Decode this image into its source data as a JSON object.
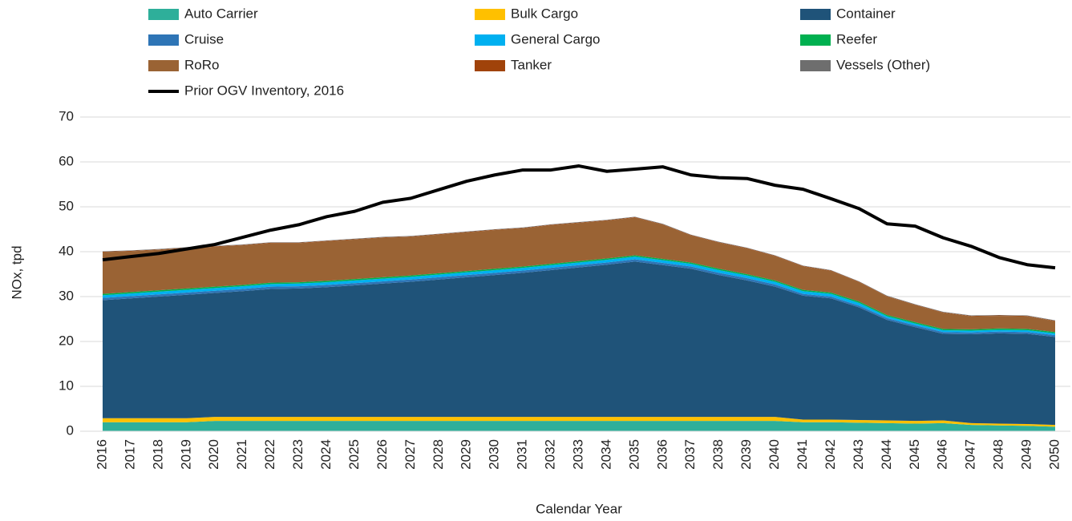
{
  "chart_data": {
    "type": "stacked_area",
    "x_label": "Calendar Year",
    "y_label": "NOx, tpd",
    "categories": [
      "2016",
      "2017",
      "2018",
      "2019",
      "2020",
      "2021",
      "2022",
      "2023",
      "2024",
      "2025",
      "2026",
      "2027",
      "2028",
      "2029",
      "2030",
      "2031",
      "2032",
      "2033",
      "2034",
      "2035",
      "2036",
      "2037",
      "2038",
      "2039",
      "2040",
      "2041",
      "2042",
      "2043",
      "2044",
      "2045",
      "2046",
      "2047",
      "2048",
      "2049",
      "2050"
    ],
    "ylim": [
      0,
      70
    ],
    "yticks": [
      0,
      10,
      20,
      30,
      40,
      50,
      60,
      70
    ],
    "grid": true,
    "series": [
      {
        "name": "Auto Carrier",
        "color": "#2eaf9a",
        "values": [
          2.0,
          2.0,
          2.0,
          2.0,
          2.3,
          2.3,
          2.3,
          2.3,
          2.3,
          2.3,
          2.3,
          2.3,
          2.3,
          2.3,
          2.3,
          2.3,
          2.3,
          2.3,
          2.3,
          2.3,
          2.3,
          2.3,
          2.3,
          2.3,
          2.3,
          2.0,
          2.0,
          1.9,
          1.8,
          1.7,
          1.8,
          1.4,
          1.3,
          1.2,
          1.0
        ]
      },
      {
        "name": "Bulk Cargo",
        "color": "#ffc000",
        "values": [
          0.9,
          0.9,
          0.9,
          0.9,
          0.9,
          0.9,
          0.9,
          0.9,
          0.9,
          0.9,
          0.9,
          0.9,
          0.9,
          0.9,
          0.9,
          0.9,
          0.9,
          0.9,
          0.9,
          0.9,
          0.9,
          0.9,
          0.9,
          0.9,
          0.9,
          0.6,
          0.6,
          0.6,
          0.6,
          0.6,
          0.6,
          0.4,
          0.4,
          0.4,
          0.4
        ]
      },
      {
        "name": "Container",
        "color": "#1f5379",
        "values": [
          26.3,
          26.7,
          27.1,
          27.5,
          27.6,
          28.0,
          28.5,
          28.6,
          28.9,
          29.3,
          29.7,
          30.1,
          30.6,
          31.1,
          31.6,
          32.1,
          32.7,
          33.3,
          33.9,
          34.6,
          33.8,
          33.0,
          31.6,
          30.4,
          29.0,
          27.6,
          27.0,
          25.1,
          22.4,
          20.9,
          19.3,
          19.8,
          20.1,
          20.1,
          19.6
        ]
      },
      {
        "name": "Cruise",
        "color": "#2e75b6",
        "values": [
          0.5,
          0.5,
          0.5,
          0.5,
          0.5,
          0.5,
          0.5,
          0.5,
          0.5,
          0.5,
          0.5,
          0.5,
          0.5,
          0.5,
          0.5,
          0.5,
          0.5,
          0.5,
          0.5,
          0.5,
          0.5,
          0.5,
          0.5,
          0.5,
          0.5,
          0.4,
          0.4,
          0.4,
          0.4,
          0.4,
          0.4,
          0.4,
          0.4,
          0.4,
          0.4
        ]
      },
      {
        "name": "General Cargo",
        "color": "#00b0f0",
        "values": [
          0.6,
          0.6,
          0.6,
          0.6,
          0.6,
          0.6,
          0.6,
          0.6,
          0.6,
          0.6,
          0.6,
          0.6,
          0.6,
          0.6,
          0.6,
          0.6,
          0.6,
          0.6,
          0.6,
          0.6,
          0.6,
          0.6,
          0.6,
          0.6,
          0.6,
          0.6,
          0.6,
          0.6,
          0.4,
          0.4,
          0.4,
          0.4,
          0.4,
          0.4,
          0.4
        ]
      },
      {
        "name": "Reefer",
        "color": "#00b050",
        "values": [
          0.3,
          0.3,
          0.3,
          0.3,
          0.3,
          0.3,
          0.3,
          0.3,
          0.3,
          0.3,
          0.3,
          0.3,
          0.3,
          0.3,
          0.3,
          0.3,
          0.3,
          0.3,
          0.3,
          0.3,
          0.3,
          0.3,
          0.3,
          0.3,
          0.3,
          0.3,
          0.3,
          0.3,
          0.3,
          0.3,
          0.3,
          0.3,
          0.3,
          0.3,
          0.3
        ]
      },
      {
        "name": "RoRo",
        "color": "#9a6334",
        "values": [
          9.3,
          9.1,
          9.0,
          9.0,
          8.9,
          8.8,
          8.8,
          8.7,
          8.8,
          8.8,
          8.8,
          8.6,
          8.6,
          8.6,
          8.6,
          8.5,
          8.6,
          8.5,
          8.4,
          8.4,
          7.6,
          6.0,
          5.8,
          5.7,
          5.4,
          5.2,
          4.8,
          4.3,
          4.1,
          3.8,
          3.6,
          2.9,
          2.8,
          2.8,
          2.4
        ]
      },
      {
        "name": "Tanker",
        "color": "#a0430a",
        "values": [
          0.1,
          0.1,
          0.1,
          0.1,
          0.1,
          0.1,
          0.1,
          0.1,
          0.1,
          0.1,
          0.1,
          0.1,
          0.1,
          0.1,
          0.1,
          0.1,
          0.1,
          0.1,
          0.1,
          0.1,
          0.1,
          0.1,
          0.1,
          0.1,
          0.1,
          0.1,
          0.1,
          0.1,
          0.1,
          0.1,
          0.1,
          0.1,
          0.1,
          0.1,
          0.1
        ]
      },
      {
        "name": "Vessels (Other)",
        "color": "#6e6e6e",
        "values": [
          0.1,
          0.1,
          0.1,
          0.1,
          0.1,
          0.1,
          0.1,
          0.1,
          0.1,
          0.1,
          0.1,
          0.1,
          0.1,
          0.1,
          0.1,
          0.1,
          0.1,
          0.1,
          0.1,
          0.1,
          0.1,
          0.1,
          0.1,
          0.1,
          0.1,
          0.1,
          0.1,
          0.1,
          0.1,
          0.1,
          0.1,
          0.1,
          0.1,
          0.1,
          0.1
        ]
      }
    ],
    "line_series": {
      "name": "Prior OGV Inventory, 2016",
      "color": "#000000",
      "values": [
        38.2,
        38.9,
        39.6,
        40.6,
        41.6,
        43.2,
        44.8,
        46.0,
        47.8,
        49.0,
        51.0,
        51.9,
        53.8,
        55.7,
        57.1,
        58.2,
        58.2,
        59.1,
        57.9,
        58.4,
        58.9,
        57.1,
        56.5,
        56.3,
        54.8,
        53.9,
        51.8,
        49.6,
        46.2,
        45.7,
        43.1,
        41.2,
        38.7,
        37.1,
        36.4
      ]
    }
  }
}
